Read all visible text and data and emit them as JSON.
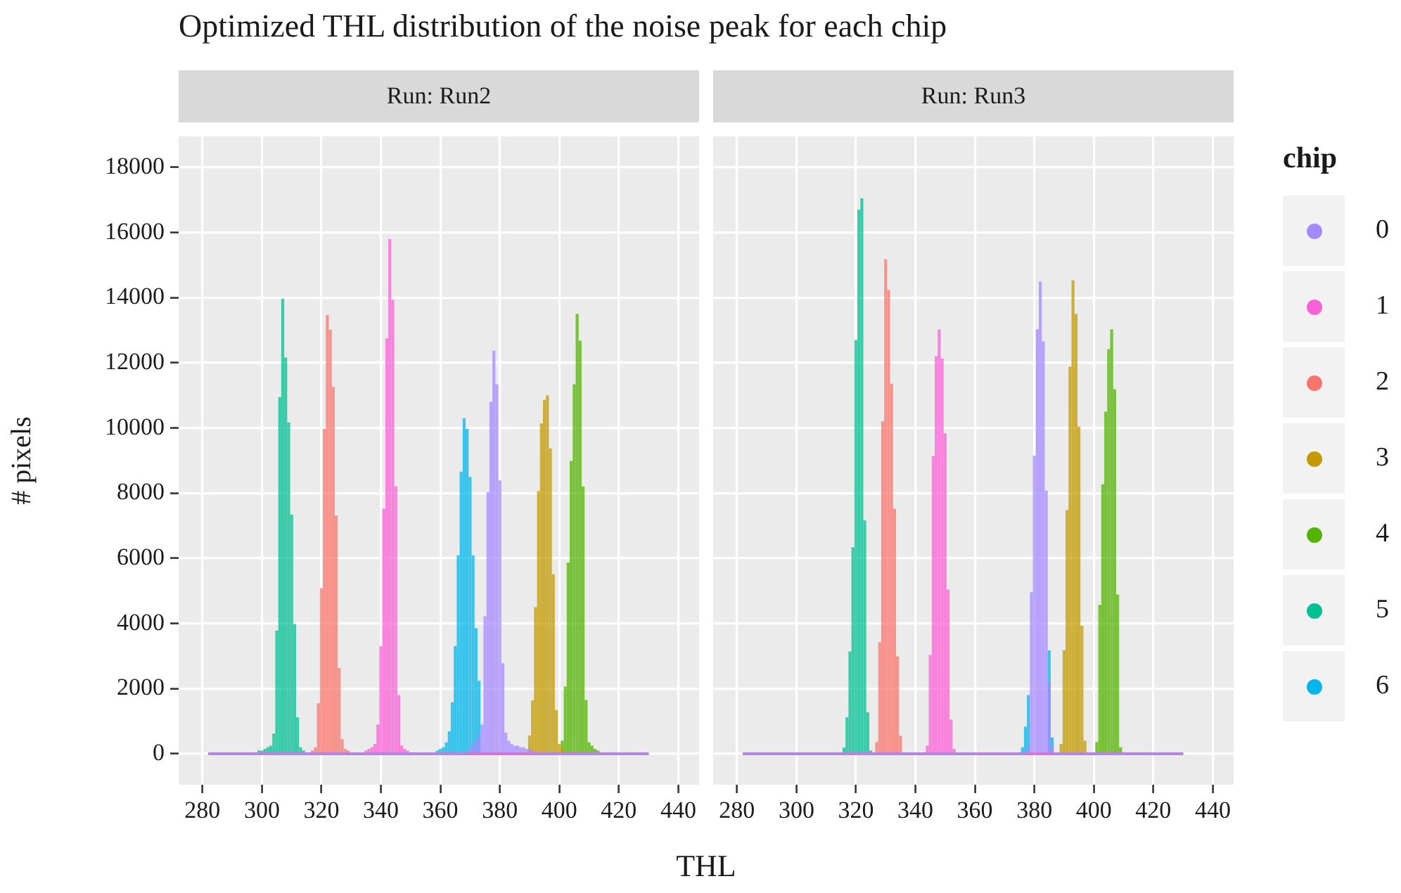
{
  "chart_data": [
    {
      "type": "histogram",
      "title": "Optimized THL distribution of the noise peak for each chip",
      "subtitle": "Run: Run2",
      "xlabel": "THL",
      "ylabel": "# pixels",
      "legend": "right",
      "xlim": [
        272,
        447
      ],
      "xticks": [
        280,
        300,
        320,
        340,
        360,
        380,
        400,
        420,
        440
      ],
      "ylim": [
        -950,
        18950
      ],
      "yticks": [
        0,
        2000,
        4000,
        6000,
        8000,
        10000,
        12000,
        14000,
        16000,
        18000
      ],
      "grid": true,
      "bins": [
        282,
        298.5,
        299.5,
        300.5,
        301.5,
        302.5,
        303.5,
        304.5,
        305.5,
        306.5,
        307.5,
        308.5,
        309.5,
        310.5,
        311.5,
        312.5,
        313.5,
        314.5,
        315.5,
        316.5,
        317.5,
        318.5,
        319.5,
        320.5,
        321.5,
        322.5,
        323.5,
        324.5,
        325.5,
        326.5,
        327.5,
        328.5,
        329.5,
        330.5,
        331.5,
        332.5,
        333.5,
        334.5,
        335.5,
        336.5,
        337.5,
        338.5,
        339.5,
        340.5,
        341.5,
        342.5,
        343.5,
        344.5,
        345.5,
        346.5,
        347.5,
        348.5,
        349.5,
        350.5,
        351.5,
        352.5,
        353.5,
        354.5,
        355.5,
        356.5,
        357.5,
        358.5,
        359.5,
        360.5,
        361.5,
        362.5,
        363.5,
        364.5,
        365.5,
        366.5,
        367.5,
        368.5,
        369.5,
        370.5,
        371.5,
        372.5,
        373.5,
        374.5,
        375.5,
        376.5,
        377.5,
        378.5,
        379.5,
        380.5,
        381.5,
        382.5,
        383.5,
        384.5,
        385.5,
        386.5,
        387.5,
        388.5,
        389.5,
        390.5,
        391.5,
        392.5,
        393.5,
        394.5,
        395.5,
        396.5,
        397.5,
        398.5,
        399.5,
        400.5,
        401.5,
        402.5,
        403.5,
        404.5,
        405.5,
        406.5,
        407.5,
        408.5,
        409.5,
        410.5,
        411.5,
        412.5,
        413.5,
        430
      ],
      "series": [
        {
          "name": "0",
          "color": "#a58aff",
          "values": [
            0,
            0,
            0,
            0,
            0,
            0,
            0,
            0,
            0,
            0,
            0,
            0,
            0,
            0,
            0,
            0,
            0,
            0,
            0,
            0,
            0,
            0,
            0,
            0,
            0,
            0,
            0,
            0,
            0,
            0,
            0,
            0,
            0,
            0,
            0,
            0,
            0,
            0,
            0,
            0,
            0,
            0,
            0,
            0,
            0,
            0,
            0,
            0,
            0,
            0,
            0,
            0,
            0,
            0,
            0,
            0,
            0,
            0,
            0,
            0,
            0,
            0,
            0,
            0,
            0,
            0,
            0,
            0,
            0,
            0,
            0,
            0,
            200,
            300,
            400,
            600,
            900,
            4220,
            8030,
            10800,
            12370,
            11340,
            8390,
            2780,
            650,
            400,
            300,
            250,
            250,
            200,
            200,
            150,
            150,
            100,
            0,
            0,
            0,
            0,
            0,
            0,
            0,
            0,
            0,
            0,
            0,
            0,
            0,
            0,
            0,
            0,
            0,
            0,
            0,
            0,
            0,
            0,
            0
          ]
        },
        {
          "name": "1",
          "color": "#fb61d7",
          "values": [
            0,
            0,
            0,
            0,
            0,
            0,
            0,
            0,
            0,
            0,
            0,
            0,
            0,
            0,
            0,
            0,
            0,
            0,
            0,
            0,
            0,
            0,
            0,
            0,
            0,
            0,
            0,
            0,
            0,
            0,
            0,
            0,
            0,
            0,
            0,
            0,
            0,
            100,
            150,
            200,
            300,
            900,
            3310,
            7520,
            12750,
            15800,
            13930,
            8210,
            1800,
            250,
            150,
            100,
            0,
            0,
            0,
            0,
            0,
            0,
            0,
            0,
            0,
            0,
            0,
            0,
            0,
            0,
            0,
            0,
            0,
            0,
            0,
            0,
            0,
            0,
            0,
            0,
            0,
            0,
            0,
            0,
            0,
            0,
            0,
            0,
            0,
            0,
            0,
            0,
            0,
            0,
            0,
            0,
            0,
            0,
            0,
            0,
            0,
            0,
            0,
            0,
            0,
            0,
            0,
            0,
            0,
            0,
            0,
            0,
            0,
            0,
            0,
            0,
            0,
            0,
            0,
            0,
            0
          ]
        },
        {
          "name": "2",
          "color": "#f8766d",
          "values": [
            0,
            0,
            0,
            0,
            0,
            0,
            0,
            0,
            0,
            0,
            0,
            0,
            0,
            0,
            0,
            0,
            0,
            0,
            0,
            100,
            200,
            1550,
            5080,
            9970,
            13470,
            13020,
            11260,
            7310,
            2630,
            450,
            150,
            100,
            0,
            0,
            0,
            0,
            0,
            0,
            0,
            0,
            0,
            0,
            0,
            0,
            0,
            0,
            0,
            0,
            0,
            0,
            0,
            0,
            0,
            0,
            0,
            0,
            0,
            0,
            0,
            0,
            0,
            0,
            0,
            0,
            0,
            0,
            0,
            0,
            0,
            0,
            0,
            0,
            0,
            0,
            0,
            0,
            0,
            0,
            0,
            0,
            0,
            0,
            0,
            0,
            0,
            0,
            0,
            0,
            0,
            0,
            0,
            0,
            0,
            0,
            0,
            0,
            0,
            0,
            0,
            0,
            0,
            0,
            0,
            0,
            0,
            0,
            0,
            0,
            0,
            0,
            0,
            0,
            0,
            0,
            0,
            0,
            0
          ]
        },
        {
          "name": "3",
          "color": "#c49a00",
          "values": [
            0,
            0,
            0,
            0,
            0,
            0,
            0,
            0,
            0,
            0,
            0,
            0,
            0,
            0,
            0,
            0,
            0,
            0,
            0,
            0,
            0,
            0,
            0,
            0,
            0,
            0,
            0,
            0,
            0,
            0,
            0,
            0,
            0,
            0,
            0,
            0,
            0,
            0,
            0,
            0,
            0,
            0,
            0,
            0,
            0,
            0,
            0,
            0,
            0,
            0,
            0,
            0,
            0,
            0,
            0,
            0,
            0,
            0,
            0,
            0,
            0,
            0,
            0,
            0,
            0,
            0,
            0,
            0,
            0,
            0,
            0,
            0,
            0,
            0,
            0,
            0,
            0,
            0,
            0,
            0,
            0,
            0,
            0,
            0,
            0,
            0,
            0,
            null,
            null,
            null,
            null,
            null,
            560,
            1640,
            4500,
            8060,
            10140,
            10860,
            11000,
            9370,
            5510,
            1340,
            300,
            200,
            0,
            0,
            0,
            0,
            0,
            0,
            0,
            0,
            0,
            0,
            0,
            0,
            0
          ]
        },
        {
          "name": "4",
          "color": "#53b400",
          "values": [
            0,
            0,
            0,
            0,
            0,
            0,
            0,
            0,
            0,
            0,
            0,
            0,
            0,
            0,
            0,
            0,
            0,
            0,
            0,
            0,
            0,
            0,
            0,
            0,
            0,
            0,
            0,
            0,
            0,
            0,
            0,
            0,
            0,
            0,
            0,
            0,
            0,
            0,
            0,
            0,
            0,
            0,
            0,
            0,
            0,
            0,
            0,
            0,
            0,
            0,
            0,
            0,
            0,
            0,
            0,
            0,
            0,
            0,
            0,
            0,
            0,
            0,
            0,
            0,
            0,
            0,
            0,
            0,
            0,
            0,
            0,
            0,
            0,
            0,
            0,
            0,
            0,
            0,
            0,
            0,
            0,
            0,
            0,
            0,
            0,
            0,
            0,
            0,
            0,
            0,
            0,
            0,
            0,
            0,
            0,
            0,
            0,
            0,
            0,
            0,
            0,
            0,
            null,
            400,
            2060,
            5870,
            8990,
            11340,
            13500,
            12680,
            8200,
            1650,
            350,
            250,
            150,
            100,
            0
          ]
        },
        {
          "name": "5",
          "color": "#00c094",
          "values": [
            0,
            100,
            100,
            150,
            200,
            250,
            620,
            3780,
            10950,
            13970,
            12160,
            10170,
            7340,
            3980,
            1120,
            200,
            100,
            0,
            0,
            0,
            0,
            0,
            0,
            0,
            0,
            0,
            0,
            0,
            0,
            0,
            0,
            0,
            0,
            0,
            0,
            0,
            0,
            0,
            0,
            0,
            0,
            0,
            0,
            0,
            0,
            0,
            0,
            0,
            0,
            0,
            0,
            0,
            0,
            0,
            0,
            0,
            0,
            0,
            0,
            0,
            0,
            0,
            0,
            0,
            0,
            0,
            0,
            0,
            0,
            0,
            0,
            0,
            0,
            0,
            0,
            0,
            0,
            0,
            0,
            0,
            0,
            0,
            0,
            0,
            0,
            0,
            0,
            0,
            0,
            0,
            0,
            0,
            0,
            0,
            0,
            0,
            0,
            0,
            0,
            0,
            0,
            0,
            0,
            0,
            0,
            0,
            0,
            0,
            0,
            0,
            0,
            0,
            0,
            0,
            0,
            0,
            0
          ]
        },
        {
          "name": "6",
          "color": "#00b6eb",
          "values": [
            0,
            0,
            0,
            0,
            0,
            0,
            0,
            0,
            0,
            0,
            0,
            0,
            0,
            0,
            0,
            0,
            0,
            0,
            0,
            0,
            0,
            0,
            0,
            0,
            0,
            0,
            0,
            0,
            0,
            0,
            0,
            0,
            0,
            0,
            0,
            0,
            0,
            0,
            0,
            0,
            0,
            0,
            0,
            0,
            0,
            0,
            0,
            0,
            0,
            0,
            0,
            0,
            0,
            0,
            0,
            0,
            0,
            0,
            0,
            0,
            0,
            100,
            150,
            200,
            350,
            690,
            1580,
            3310,
            6090,
            8660,
            10300,
            9970,
            8500,
            6090,
            3850,
            2240,
            null,
            null,
            null,
            0,
            0,
            0,
            0,
            0,
            0,
            0,
            0,
            0,
            0,
            0,
            0,
            0,
            0,
            0,
            0,
            0,
            0,
            0,
            0,
            0,
            0,
            0,
            0,
            0,
            0,
            0,
            0,
            0,
            0,
            0,
            0,
            0,
            0,
            0,
            0,
            0,
            0
          ]
        }
      ]
    },
    {
      "type": "histogram",
      "subtitle": "Run: Run3",
      "legend": "right",
      "legend_title": "chip",
      "tick_labels": "x",
      "xlim": [
        272,
        447
      ],
      "xticks": [
        280,
        300,
        320,
        340,
        360,
        380,
        400,
        420,
        440
      ],
      "ylim": [
        -950,
        18950
      ],
      "yticks": [
        0,
        2000,
        4000,
        6000,
        8000,
        10000,
        12000,
        14000,
        16000,
        18000
      ],
      "grid": true,
      "bins": [
        282,
        315.5,
        316.5,
        317.5,
        318.5,
        319.5,
        320.5,
        321.5,
        322.5,
        323.5,
        324.5,
        325.5,
        326.5,
        327.5,
        328.5,
        329.5,
        330.5,
        331.5,
        332.5,
        333.5,
        334.5,
        335.5,
        336.5,
        337.5,
        338.5,
        339.5,
        340.5,
        341.5,
        342.5,
        343.5,
        344.5,
        345.5,
        346.5,
        347.5,
        348.5,
        349.5,
        350.5,
        351.5,
        352.5,
        353.5,
        354.5,
        355.5,
        356.5,
        357.5,
        358.5,
        359.5,
        360.5,
        361.5,
        362.5,
        363.5,
        364.5,
        365.5,
        366.5,
        367.5,
        368.5,
        369.5,
        370.5,
        371.5,
        372.5,
        373.5,
        374.5,
        375.5,
        376.5,
        377.5,
        378.5,
        379.5,
        380.5,
        381.5,
        382.5,
        383.5,
        384.5,
        385.5,
        386.5,
        387.5,
        388.5,
        389.5,
        390.5,
        391.5,
        392.5,
        393.5,
        394.5,
        395.5,
        396.5,
        397.5,
        398.5,
        399.5,
        400.5,
        401.5,
        402.5,
        403.5,
        404.5,
        405.5,
        406.5,
        407.5,
        408.5,
        409.5,
        430
      ],
      "series": [
        {
          "name": "0",
          "color": "#a58aff",
          "values": [
            0,
            0,
            0,
            0,
            0,
            0,
            0,
            0,
            0,
            0,
            0,
            0,
            0,
            0,
            0,
            0,
            0,
            0,
            0,
            0,
            0,
            0,
            0,
            0,
            0,
            0,
            0,
            0,
            0,
            0,
            0,
            0,
            0,
            0,
            0,
            0,
            0,
            0,
            0,
            0,
            0,
            0,
            0,
            0,
            0,
            0,
            0,
            0,
            0,
            0,
            0,
            0,
            0,
            0,
            0,
            0,
            0,
            0,
            0,
            0,
            0,
            0,
            0,
            200,
            4960,
            9150,
            13030,
            14500,
            12660,
            8070,
            2200,
            250,
            0,
            0,
            0,
            0,
            0,
            0,
            0,
            0,
            0,
            0,
            0,
            0,
            0,
            0,
            0,
            0,
            0,
            0,
            0,
            0,
            0,
            0,
            0,
            0
          ]
        },
        {
          "name": "1",
          "color": "#fb61d7",
          "values": [
            0,
            0,
            0,
            0,
            0,
            0,
            0,
            0,
            0,
            0,
            0,
            0,
            0,
            0,
            0,
            0,
            0,
            0,
            0,
            0,
            0,
            0,
            0,
            0,
            0,
            0,
            0,
            0,
            0,
            250,
            3030,
            9140,
            12200,
            13020,
            12130,
            9830,
            5040,
            1050,
            150,
            0,
            0,
            0,
            0,
            0,
            0,
            0,
            0,
            0,
            0,
            0,
            0,
            0,
            0,
            0,
            0,
            0,
            0,
            0,
            0,
            0,
            0,
            0,
            0,
            0,
            0,
            0,
            0,
            0,
            0,
            0,
            0,
            0,
            0,
            0,
            0,
            0,
            0,
            0,
            0,
            0,
            0,
            0,
            0,
            0,
            0,
            0,
            0,
            0,
            0,
            0,
            0,
            0,
            0,
            0,
            0,
            0
          ]
        },
        {
          "name": "2",
          "color": "#f8766d",
          "values": [
            0,
            0,
            0,
            0,
            0,
            0,
            0,
            0,
            0,
            0,
            0,
            0,
            360,
            3420,
            10210,
            15180,
            14240,
            11360,
            7520,
            2990,
            550,
            0,
            0,
            0,
            0,
            0,
            0,
            0,
            0,
            0,
            0,
            0,
            0,
            0,
            0,
            0,
            0,
            0,
            0,
            0,
            0,
            0,
            0,
            0,
            0,
            0,
            0,
            0,
            0,
            0,
            0,
            0,
            0,
            0,
            0,
            0,
            0,
            0,
            0,
            0,
            0,
            0,
            0,
            0,
            0,
            0,
            0,
            0,
            0,
            0,
            0,
            0,
            0,
            0,
            0,
            0,
            0,
            0,
            0,
            0,
            0,
            0,
            0,
            0,
            0,
            0,
            0,
            0,
            0,
            0,
            0,
            0,
            0,
            0,
            0,
            0
          ]
        },
        {
          "name": "3",
          "color": "#c49a00",
          "values": [
            0,
            0,
            0,
            0,
            0,
            0,
            0,
            0,
            0,
            0,
            0,
            0,
            0,
            0,
            0,
            0,
            0,
            0,
            0,
            0,
            0,
            0,
            0,
            0,
            0,
            0,
            0,
            0,
            0,
            0,
            0,
            0,
            0,
            0,
            0,
            0,
            0,
            0,
            0,
            0,
            0,
            0,
            0,
            0,
            0,
            0,
            0,
            0,
            0,
            0,
            0,
            0,
            0,
            0,
            0,
            0,
            0,
            0,
            0,
            0,
            0,
            0,
            0,
            0,
            0,
            0,
            0,
            0,
            0,
            0,
            0,
            0,
            0,
            0,
            300,
            3180,
            7480,
            11880,
            14530,
            13500,
            10040,
            3930,
            400,
            0,
            0,
            0,
            0,
            0,
            0,
            0,
            0,
            0,
            0,
            0,
            0,
            0
          ]
        },
        {
          "name": "4",
          "color": "#53b400",
          "values": [
            0,
            0,
            0,
            0,
            0,
            0,
            0,
            0,
            0,
            0,
            0,
            0,
            0,
            0,
            0,
            0,
            0,
            0,
            0,
            0,
            0,
            0,
            0,
            0,
            0,
            0,
            0,
            0,
            0,
            0,
            0,
            0,
            0,
            0,
            0,
            0,
            0,
            0,
            0,
            0,
            0,
            0,
            0,
            0,
            0,
            0,
            0,
            0,
            0,
            0,
            0,
            0,
            0,
            0,
            0,
            0,
            0,
            0,
            0,
            0,
            0,
            0,
            0,
            0,
            0,
            0,
            0,
            0,
            0,
            0,
            0,
            0,
            0,
            0,
            0,
            0,
            0,
            0,
            0,
            0,
            0,
            0,
            0,
            0,
            0,
            0,
            360,
            4570,
            8270,
            10500,
            12420,
            13030,
            11190,
            4890,
            200,
            0
          ]
        },
        {
          "name": "5",
          "color": "#00c094",
          "values": [
            0,
            190,
            1120,
            3140,
            6340,
            12700,
            16700,
            17050,
            7160,
            1270,
            100,
            0,
            0,
            0,
            0,
            0,
            0,
            0,
            0,
            0,
            0,
            0,
            0,
            0,
            0,
            0,
            0,
            0,
            0,
            0,
            0,
            0,
            0,
            0,
            0,
            0,
            0,
            0,
            0,
            0,
            0,
            0,
            0,
            0,
            0,
            0,
            0,
            0,
            0,
            0,
            0,
            0,
            0,
            0,
            0,
            0,
            0,
            0,
            0,
            0,
            0,
            0,
            0,
            0,
            0,
            0,
            0,
            0,
            0,
            0,
            0,
            0,
            0,
            0,
            0,
            0,
            0,
            0,
            0,
            0,
            0,
            0,
            0,
            0,
            0,
            0,
            0,
            0,
            0,
            0,
            0,
            0,
            0,
            0,
            0,
            0
          ]
        },
        {
          "name": "6",
          "color": "#00b6eb",
          "values": [
            0,
            0,
            0,
            0,
            0,
            0,
            0,
            0,
            0,
            0,
            0,
            0,
            0,
            0,
            0,
            0,
            0,
            0,
            0,
            0,
            0,
            0,
            0,
            0,
            0,
            0,
            0,
            0,
            0,
            0,
            0,
            0,
            0,
            0,
            0,
            0,
            0,
            0,
            0,
            0,
            0,
            0,
            0,
            0,
            0,
            0,
            0,
            0,
            0,
            0,
            0,
            0,
            0,
            0,
            0,
            0,
            0,
            0,
            0,
            0,
            0,
            200,
            830,
            1800,
            null,
            null,
            null,
            null,
            null,
            null,
            3170,
            500,
            0,
            0,
            0,
            0,
            0,
            0,
            0,
            0,
            0,
            0,
            0,
            0,
            0,
            0,
            0,
            0,
            0,
            0,
            0,
            0,
            0,
            0,
            0,
            0
          ]
        }
      ]
    }
  ]
}
